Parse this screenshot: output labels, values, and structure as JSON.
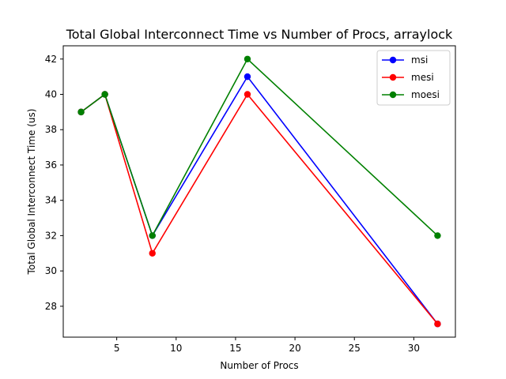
{
  "chart_data": {
    "type": "line",
    "title": "Total Global Interconnect Time vs Number of Procs, arraylock",
    "xlabel": "Number of Procs",
    "ylabel": "Total Global Interconnect Time (us)",
    "x": [
      2,
      4,
      8,
      16,
      32
    ],
    "xlim": [
      0.5,
      33.5
    ],
    "ylim": [
      26.25,
      42.75
    ],
    "xticks": [
      5,
      10,
      15,
      20,
      25,
      30
    ],
    "yticks": [
      28,
      30,
      32,
      34,
      36,
      38,
      40,
      42
    ],
    "legend_position": "top-right",
    "grid": false,
    "series": [
      {
        "name": "msi",
        "color": "#0000ff",
        "values": [
          39,
          40,
          32,
          41,
          27
        ]
      },
      {
        "name": "mesi",
        "color": "#ff0000",
        "values": [
          39,
          40,
          31,
          40,
          27
        ]
      },
      {
        "name": "moesi",
        "color": "#008000",
        "values": [
          39,
          40,
          32,
          42,
          32
        ]
      }
    ]
  }
}
